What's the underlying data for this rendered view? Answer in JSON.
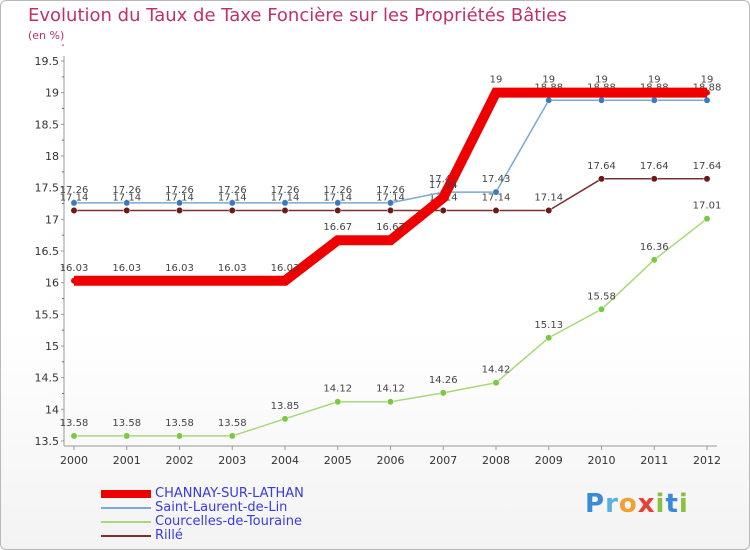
{
  "page": {
    "title": "Evolution du Taux de Taxe Foncière sur les Propriétés Bâties",
    "unit": "(en %)",
    "logo": {
      "text": "Proxiti",
      "letters": [
        "P",
        "r",
        "o",
        "x",
        "i",
        "t",
        "i"
      ]
    }
  },
  "chart_data": {
    "type": "line",
    "title": "Evolution du Taux de Taxe Foncière sur les Propriétés Bâties",
    "ylabel": "(en %)",
    "xlabel": "",
    "ylim": [
      13.5,
      19.5
    ],
    "yticks": [
      "13.5",
      "14",
      "14.5",
      "15",
      "15.5",
      "16",
      "16.5",
      "17",
      "17.5",
      "18",
      "18.5",
      "19",
      "19.5"
    ],
    "categories": [
      "2000",
      "2001",
      "2002",
      "2003",
      "2004",
      "2005",
      "2006",
      "2007",
      "2008",
      "2009",
      "2010",
      "2011",
      "2012"
    ],
    "series": [
      {
        "name": "Courcelles-de-Touraine",
        "color": "#a8d878",
        "marker": "#7ac943",
        "values": [
          13.58,
          13.58,
          13.58,
          13.58,
          13.85,
          14.12,
          14.12,
          14.26,
          14.42,
          15.13,
          15.58,
          16.36,
          17.01
        ],
        "labels": [
          "13.58",
          "13.58",
          "13.58",
          "13.58",
          "13.85",
          "14.12",
          "14.12",
          "14.26",
          "14.42",
          "15.13",
          "15.58",
          "16.36",
          "17.01"
        ]
      },
      {
        "name": "Rillé",
        "color": "#7a3030",
        "marker": "#6b1a1a",
        "values": [
          17.14,
          17.14,
          17.14,
          17.14,
          17.14,
          17.14,
          17.14,
          17.14,
          17.14,
          17.14,
          17.64,
          17.64,
          17.64
        ],
        "labels": [
          "17.14",
          "17.14",
          "17.14",
          "17.14",
          "17.14",
          "17.14",
          "17.14",
          "17.14",
          "17.14",
          "17.14",
          "17.64",
          "17.64",
          "17.64"
        ]
      },
      {
        "name": "Saint-Laurent-de-Lin",
        "color": "#7aaad0",
        "marker": "#3a7ac0",
        "values": [
          17.26,
          17.26,
          17.26,
          17.26,
          17.26,
          17.26,
          17.26,
          17.43,
          17.43,
          18.88,
          18.88,
          18.88,
          18.88
        ],
        "labels": [
          "17.26",
          "17.26",
          "17.26",
          "17.26",
          "17.26",
          "17.26",
          "17.26",
          "17.43",
          "17.43",
          "18.88",
          "18.88",
          "18.88",
          "18.88"
        ]
      },
      {
        "name": "CHANNAY-SUR-LATHAN",
        "color": "#ee0000",
        "marker": "#ee0000",
        "values": [
          16.03,
          16.03,
          16.03,
          16.03,
          16.03,
          16.67,
          16.67,
          17.34,
          19,
          19,
          19,
          19,
          19
        ],
        "labels": [
          "16.03",
          "16.03",
          "16.03",
          "16.03",
          "16.03",
          "16.67",
          "16.67",
          "17.34",
          "19",
          "19",
          "19",
          "19",
          "19"
        ]
      }
    ],
    "legend": [
      {
        "name": "CHANNAY-SUR-LATHAN",
        "color": "#ee0000",
        "thick": true
      },
      {
        "name": "Saint-Laurent-de-Lin",
        "color": "#7aaad0",
        "thick": false
      },
      {
        "name": "Courcelles-de-Touraine",
        "color": "#a8d878",
        "thick": false
      },
      {
        "name": "Rillé",
        "color": "#7a3030",
        "thick": false
      }
    ],
    "legend_position": "bottom-left",
    "grid": false
  }
}
